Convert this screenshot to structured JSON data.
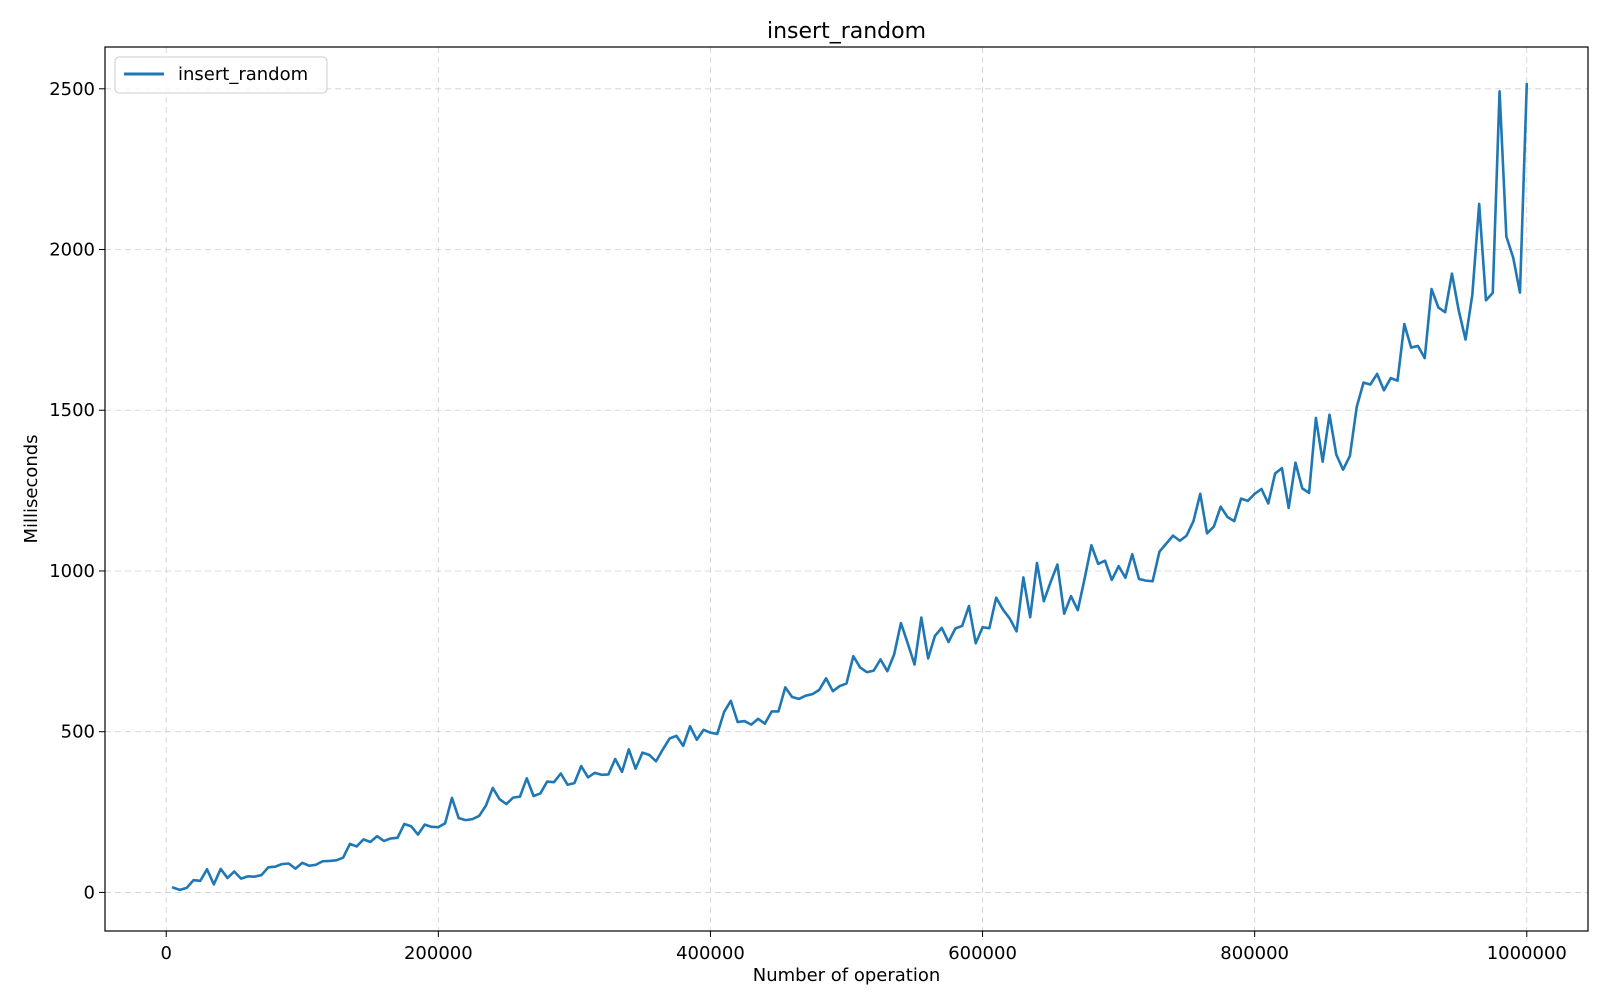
{
  "chart_data": {
    "type": "line",
    "title": "insert_random",
    "xlabel": "Number of operation",
    "ylabel": "Milliseconds",
    "xlim": [
      -45000,
      1045000
    ],
    "ylim": [
      -120,
      2630
    ],
    "xticks": [
      0,
      200000,
      400000,
      600000,
      800000,
      1000000
    ],
    "xtick_labels": [
      "0",
      "200000",
      "400000",
      "600000",
      "800000",
      "1000000"
    ],
    "yticks": [
      0,
      500,
      1000,
      1500,
      2000,
      2500
    ],
    "ytick_labels": [
      "0",
      "500",
      "1000",
      "1500",
      "2000",
      "2500"
    ],
    "grid": true,
    "legend_position": "top-left",
    "series": [
      {
        "name": "insert_random",
        "color": "#1f77b4",
        "x_start": 5000,
        "x_step": 5000,
        "values": [
          15,
          8,
          14,
          38,
          36,
          72,
          25,
          73,
          45,
          65,
          43,
          50,
          49,
          54,
          78,
          80,
          88,
          90,
          74,
          92,
          83,
          86,
          97,
          98,
          100,
          108,
          151,
          143,
          165,
          157,
          175,
          160,
          168,
          170,
          213,
          206,
          180,
          211,
          204,
          203,
          215,
          294,
          231,
          225,
          228,
          238,
          270,
          325,
          290,
          275,
          295,
          298,
          355,
          300,
          308,
          345,
          343,
          370,
          335,
          340,
          393,
          358,
          372,
          366,
          367,
          415,
          375,
          445,
          385,
          435,
          428,
          408,
          445,
          479,
          487,
          456,
          517,
          475,
          506,
          497,
          493,
          561,
          596,
          530,
          533,
          522,
          540,
          525,
          563,
          563,
          638,
          608,
          602,
          612,
          617,
          630,
          666,
          626,
          642,
          650,
          735,
          700,
          685,
          690,
          725,
          688,
          740,
          838,
          775,
          709,
          855,
          728,
          798,
          823,
          779,
          821,
          829,
          891,
          775,
          825,
          822,
          917,
          880,
          852,
          812,
          980,
          856,
          1025,
          906,
          965,
          1020,
          867,
          922,
          878,
          976,
          1080,
          1022,
          1032,
          972,
          1015,
          979,
          1052,
          975,
          970,
          968,
          1060,
          1085,
          1110,
          1094,
          1110,
          1155,
          1240,
          1117,
          1138,
          1200,
          1168,
          1155,
          1225,
          1218,
          1240,
          1255,
          1210,
          1303,
          1320,
          1196,
          1337,
          1257,
          1243,
          1476,
          1340,
          1486,
          1362,
          1315,
          1358,
          1510,
          1586,
          1580,
          1613,
          1562,
          1600,
          1592,
          1768,
          1695,
          1700,
          1662,
          1877,
          1820,
          1805,
          1925,
          1810,
          1720,
          1860,
          2142,
          1842,
          1865,
          2492,
          2040,
          1975,
          1866,
          2515
        ]
      }
    ]
  }
}
